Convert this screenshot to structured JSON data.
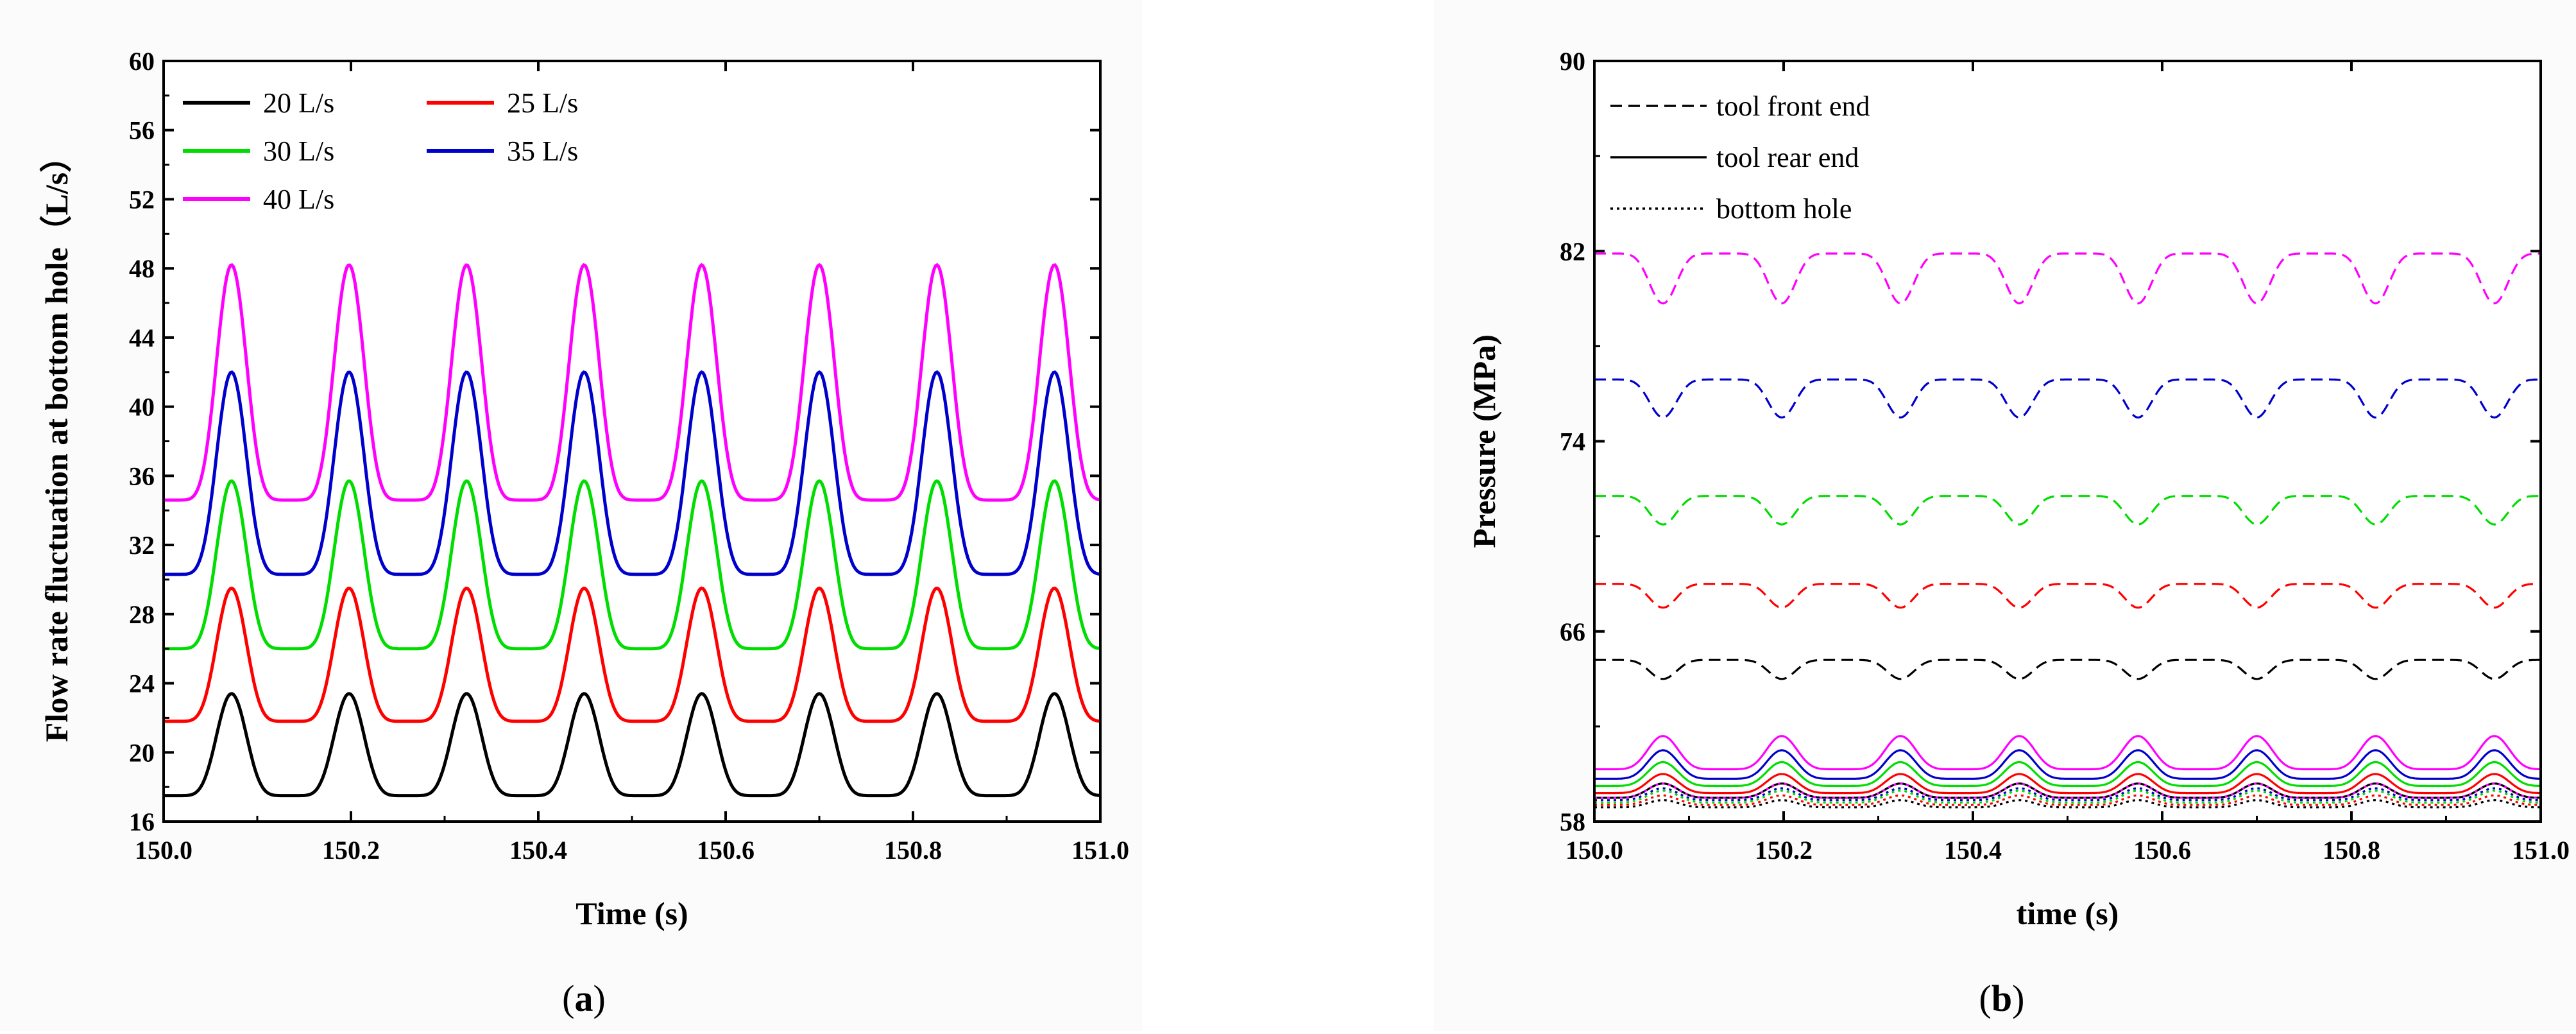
{
  "chart_data": [
    {
      "type": "line",
      "panel_label": "a",
      "xlabel": "Time (s)",
      "ylabel": "Flow rate fluctuation at bottom hole（L/s）",
      "xlim": [
        150.0,
        151.0
      ],
      "ylim": [
        16,
        60
      ],
      "xticks": [
        150.0,
        150.2,
        150.4,
        150.6,
        150.8,
        151.0
      ],
      "xtick_labels": [
        "150.0",
        "150.2",
        "150.4",
        "150.6",
        "150.8",
        "151.0"
      ],
      "yticks": [
        16,
        20,
        24,
        28,
        32,
        36,
        40,
        44,
        48,
        52,
        56,
        60
      ],
      "ytick_labels": [
        "16",
        "20",
        "24",
        "28",
        "32",
        "36",
        "40",
        "44",
        "48",
        "52",
        "56",
        "60"
      ],
      "period": 0.1255,
      "phase": 0.1,
      "legend_position": "top-left",
      "series": [
        {
          "name": "20 L/s",
          "color": "#000000",
          "min": 17.5,
          "max": 23.4,
          "style": "solid"
        },
        {
          "name": "25 L/s",
          "color": "#ff0000",
          "min": 21.8,
          "max": 29.5,
          "style": "solid"
        },
        {
          "name": "30 L/s",
          "color": "#00dd00",
          "min": 26.0,
          "max": 35.7,
          "style": "solid"
        },
        {
          "name": "35 L/s",
          "color": "#0000cc",
          "min": 30.3,
          "max": 42.0,
          "style": "solid"
        },
        {
          "name": "40 L/s",
          "color": "#ff00ff",
          "min": 34.6,
          "max": 48.2,
          "style": "solid"
        }
      ]
    },
    {
      "type": "line",
      "panel_label": "b",
      "xlabel": "time (s)",
      "ylabel": "Pressure (MPa)",
      "xlim": [
        150.0,
        151.0
      ],
      "ylim": [
        58,
        90
      ],
      "xticks": [
        150.0,
        150.2,
        150.4,
        150.6,
        150.8,
        151.0
      ],
      "xtick_labels": [
        "150.0",
        "150.2",
        "150.4",
        "150.6",
        "150.8",
        "151.0"
      ],
      "yticks": [
        58,
        66,
        74,
        82,
        90
      ],
      "ytick_labels": [
        "58",
        "66",
        "74",
        "82",
        "90"
      ],
      "period": 0.1255,
      "phase": 0.1,
      "legend_position": "top-left",
      "legend": [
        {
          "label": "tool front end",
          "style": "dashed"
        },
        {
          "label": "tool rear end",
          "style": "solid"
        },
        {
          "label": "bottom hole",
          "style": "dotted"
        }
      ],
      "series": [
        {
          "name": "tool front end 40 L/s",
          "color": "#ff00ff",
          "style": "dashed",
          "min": 79.8,
          "max": 81.9,
          "shape": "dip"
        },
        {
          "name": "tool front end 35 L/s",
          "color": "#0000cc",
          "style": "dashed",
          "min": 75.0,
          "max": 76.6,
          "shape": "dip"
        },
        {
          "name": "tool front end 30 L/s",
          "color": "#00dd00",
          "style": "dashed",
          "min": 70.5,
          "max": 71.7,
          "shape": "dip"
        },
        {
          "name": "tool front end 25 L/s",
          "color": "#ff0000",
          "style": "dashed",
          "min": 67.0,
          "max": 68.0,
          "shape": "dip"
        },
        {
          "name": "tool front end 20 L/s",
          "color": "#000000",
          "style": "dashed",
          "min": 64.0,
          "max": 64.8,
          "shape": "dip"
        },
        {
          "name": "tool rear end 40 L/s",
          "color": "#ff00ff",
          "style": "solid",
          "min": 60.2,
          "max": 61.6,
          "shape": "peak"
        },
        {
          "name": "tool rear end 35 L/s",
          "color": "#0000cc",
          "style": "solid",
          "min": 59.8,
          "max": 61.0,
          "shape": "peak"
        },
        {
          "name": "tool rear end 30 L/s",
          "color": "#00dd00",
          "style": "solid",
          "min": 59.5,
          "max": 60.5,
          "shape": "peak"
        },
        {
          "name": "tool rear end 25 L/s",
          "color": "#ff0000",
          "style": "solid",
          "min": 59.2,
          "max": 60.0,
          "shape": "peak"
        },
        {
          "name": "tool rear end 20 L/s",
          "color": "#000000",
          "style": "solid",
          "min": 59.0,
          "max": 59.6,
          "shape": "peak"
        },
        {
          "name": "bottom hole 40 L/s",
          "color": "#ff00ff",
          "style": "dotted",
          "min": 59.0,
          "max": 59.6,
          "shape": "peak"
        },
        {
          "name": "bottom hole 35 L/s",
          "color": "#0000cc",
          "style": "dotted",
          "min": 58.9,
          "max": 59.4,
          "shape": "peak"
        },
        {
          "name": "bottom hole 30 L/s",
          "color": "#00dd00",
          "style": "dotted",
          "min": 58.8,
          "max": 59.3,
          "shape": "peak"
        },
        {
          "name": "bottom hole 25 L/s",
          "color": "#ff0000",
          "style": "dotted",
          "min": 58.7,
          "max": 59.1,
          "shape": "peak"
        },
        {
          "name": "bottom hole 20 L/s",
          "color": "#000000",
          "style": "dotted",
          "min": 58.6,
          "max": 58.9,
          "shape": "peak"
        }
      ]
    }
  ]
}
